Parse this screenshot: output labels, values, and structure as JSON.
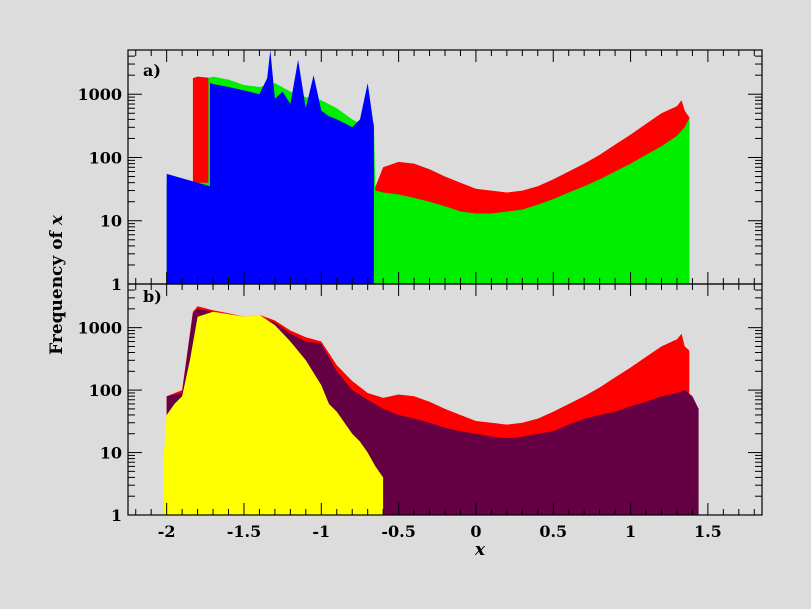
{
  "chart_data": [
    {
      "panel": "a)",
      "type": "area",
      "xlabel": "x",
      "ylabel": "Frequency of x",
      "xlim": [
        -2.25,
        1.85
      ],
      "ylim": [
        1,
        5000
      ],
      "yscale": "log",
      "xticks": [
        -2,
        -1.5,
        -1,
        -0.5,
        0,
        0.5,
        1,
        1.5
      ],
      "yticks": [
        1,
        10,
        100,
        1000
      ],
      "grid": false,
      "legend": "none",
      "series": [
        {
          "color": "#ff0000",
          "x": [
            -2.0,
            -1.83,
            -1.83,
            -1.8,
            -1.7,
            -1.6,
            -1.5,
            -1.4,
            -1.3,
            -1.2,
            -1.1,
            -1.0,
            -0.9,
            -0.8,
            -0.7,
            -0.66,
            -0.66,
            -0.6,
            -0.5,
            -0.4,
            -0.3,
            -0.2,
            -0.1,
            0.0,
            0.1,
            0.2,
            0.3,
            0.4,
            0.5,
            0.6,
            0.7,
            0.8,
            0.9,
            1.0,
            1.1,
            1.2,
            1.3,
            1.33,
            1.35,
            1.38,
            1.38
          ],
          "y": [
            40,
            40,
            1800,
            1900,
            1800,
            1600,
            1300,
            1200,
            1000,
            900,
            800,
            600,
            400,
            300,
            250,
            200,
            30,
            70,
            85,
            80,
            65,
            50,
            40,
            32,
            30,
            28,
            30,
            35,
            45,
            60,
            80,
            110,
            160,
            230,
            340,
            500,
            650,
            800,
            550,
            430,
            1
          ]
        },
        {
          "color": "#00ee00",
          "x": [
            -2.0,
            -1.73,
            -1.73,
            -1.7,
            -1.6,
            -1.5,
            -1.4,
            -1.3,
            -1.2,
            -1.1,
            -1.0,
            -0.9,
            -0.8,
            -0.7,
            -0.66,
            -0.65,
            -0.6,
            -0.5,
            -0.4,
            -0.3,
            -0.2,
            -0.1,
            0.0,
            0.1,
            0.2,
            0.3,
            0.4,
            0.5,
            0.6,
            0.7,
            0.8,
            0.9,
            1.0,
            1.1,
            1.2,
            1.3,
            1.35,
            1.38,
            1.38
          ],
          "y": [
            40,
            40,
            1800,
            1900,
            1700,
            1400,
            1300,
            1500,
            1100,
            900,
            800,
            600,
            400,
            300,
            350,
            30,
            28,
            26,
            23,
            20,
            17,
            14,
            13,
            13,
            14,
            15,
            18,
            22,
            28,
            35,
            45,
            60,
            80,
            110,
            150,
            220,
            300,
            420,
            1
          ]
        },
        {
          "color": "#0000ff",
          "x": [
            -2.0,
            -1.72,
            -1.72,
            -1.7,
            -1.6,
            -1.5,
            -1.4,
            -1.35,
            -1.33,
            -1.3,
            -1.25,
            -1.2,
            -1.15,
            -1.1,
            -1.05,
            -1.0,
            -0.95,
            -0.9,
            -0.85,
            -0.8,
            -0.75,
            -0.7,
            -0.66,
            -0.66
          ],
          "y": [
            55,
            35,
            1500,
            1450,
            1300,
            1150,
            1000,
            1800,
            5000,
            850,
            1100,
            700,
            3500,
            600,
            2000,
            550,
            450,
            400,
            350,
            300,
            400,
            1500,
            300,
            1
          ]
        }
      ]
    },
    {
      "panel": "b)",
      "type": "area",
      "xlabel": "x",
      "ylabel": "Frequency of x",
      "xlim": [
        -2.25,
        1.85
      ],
      "ylim": [
        1,
        5000
      ],
      "yscale": "log",
      "xticks": [
        -2,
        -1.5,
        -1,
        -0.5,
        0,
        0.5,
        1,
        1.5
      ],
      "xtick_labels": [
        "-2",
        "-1.5",
        "-1",
        "-0.5",
        "0",
        "0.5",
        "1",
        "1.5"
      ],
      "yticks": [
        1,
        10,
        100,
        1000
      ],
      "grid": false,
      "legend": "none",
      "series": [
        {
          "color": "#ff0000",
          "x": [
            -2.0,
            -1.9,
            -1.83,
            -1.8,
            -1.7,
            -1.6,
            -1.5,
            -1.4,
            -1.3,
            -1.2,
            -1.1,
            -1.0,
            -0.9,
            -0.8,
            -0.7,
            -0.6,
            -0.5,
            -0.4,
            -0.3,
            -0.2,
            -0.1,
            0.0,
            0.1,
            0.2,
            0.3,
            0.4,
            0.5,
            0.6,
            0.7,
            0.8,
            0.9,
            1.0,
            1.1,
            1.2,
            1.3,
            1.33,
            1.35,
            1.38,
            1.38
          ],
          "y": [
            80,
            100,
            1800,
            2200,
            1900,
            1700,
            1500,
            1600,
            1300,
            900,
            700,
            600,
            250,
            140,
            90,
            75,
            85,
            80,
            65,
            50,
            40,
            32,
            30,
            28,
            30,
            35,
            45,
            60,
            80,
            110,
            160,
            230,
            340,
            500,
            650,
            800,
            500,
            430,
            1
          ]
        },
        {
          "color": "#650045",
          "x": [
            -2.0,
            -1.9,
            -1.83,
            -1.8,
            -1.7,
            -1.6,
            -1.5,
            -1.4,
            -1.3,
            -1.2,
            -1.1,
            -1.0,
            -0.9,
            -0.8,
            -0.7,
            -0.6,
            -0.5,
            -0.4,
            -0.3,
            -0.2,
            -0.1,
            0.0,
            0.1,
            0.2,
            0.3,
            0.4,
            0.5,
            0.6,
            0.7,
            0.8,
            0.9,
            1.0,
            1.1,
            1.2,
            1.3,
            1.35,
            1.4,
            1.44,
            1.44
          ],
          "y": [
            80,
            90,
            1700,
            2000,
            1800,
            1600,
            1400,
            1500,
            1200,
            800,
            600,
            550,
            200,
            100,
            70,
            50,
            40,
            35,
            30,
            25,
            22,
            20,
            18,
            17,
            18,
            20,
            22,
            28,
            35,
            40,
            45,
            55,
            65,
            80,
            90,
            100,
            80,
            50,
            1
          ]
        },
        {
          "color": "#ffff00",
          "x": [
            -2.02,
            -2.0,
            -1.95,
            -1.9,
            -1.85,
            -1.8,
            -1.7,
            -1.6,
            -1.5,
            -1.4,
            -1.3,
            -1.2,
            -1.1,
            -1.0,
            -0.95,
            -0.9,
            -0.85,
            -0.8,
            -0.75,
            -0.7,
            -0.65,
            -0.6,
            -0.6
          ],
          "y": [
            8,
            40,
            60,
            80,
            300,
            1500,
            1800,
            1650,
            1500,
            1600,
            1100,
            600,
            300,
            120,
            60,
            45,
            30,
            20,
            15,
            10,
            6,
            4,
            1
          ]
        }
      ]
    }
  ]
}
